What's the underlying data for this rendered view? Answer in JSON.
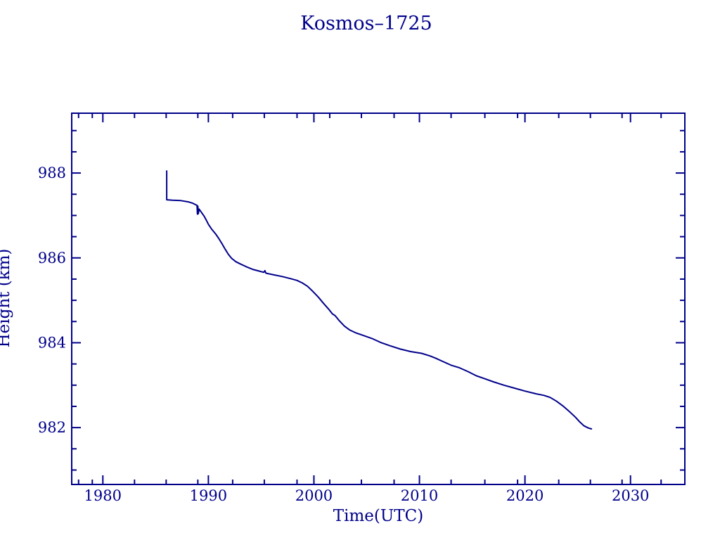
{
  "page": {
    "background": "#ffffff",
    "accent_color": "#00008b"
  },
  "chart_data": {
    "type": "line",
    "title": "Kosmos–1725",
    "xlabel": "Time(UTC)",
    "ylabel": "Height (km)",
    "xlim": [
      1977.05,
      2035.15
    ],
    "ylim": [
      980.66,
      989.41
    ],
    "grid": false,
    "legend_position": "none",
    "line_color": "#00008b",
    "x_major_ticks": [
      1980,
      1990,
      2000,
      2010,
      2020,
      2030
    ],
    "x_major_labels": [
      "1980",
      "1990",
      "2000",
      "2010",
      "2020",
      "2030"
    ],
    "x_minor_ticks": [
      1977.7,
      1979.0,
      1983.0,
      1986.0,
      1989.0,
      1992.3,
      1995.3,
      1998.4,
      2001.5,
      2004.5,
      2007.6,
      2013.0,
      2016.2,
      2019.3,
      2023.2,
      2026.2,
      2029.2,
      2032.9
    ],
    "y_major_ticks": [
      982,
      984,
      986,
      988
    ],
    "y_major_labels": [
      "982",
      "984",
      "986",
      "988"
    ],
    "y_minor_ticks": [
      981,
      981.5,
      982.5,
      983,
      983.5,
      984.5,
      985,
      985.5,
      986.5,
      987,
      987.5,
      988.5,
      989
    ],
    "series": [
      {
        "name": "Kosmos-1725 orbital height",
        "points": [
          [
            1986.05,
            988.05
          ],
          [
            1986.05,
            987.37
          ],
          [
            1986.6,
            987.36
          ],
          [
            1987.4,
            987.35
          ],
          [
            1988.1,
            987.32
          ],
          [
            1988.5,
            987.29
          ],
          [
            1988.8,
            987.25
          ],
          [
            1988.92,
            987.24
          ],
          [
            1988.96,
            987.03
          ],
          [
            1989.0,
            987.22
          ],
          [
            1989.04,
            987.04
          ],
          [
            1989.12,
            987.15
          ],
          [
            1989.35,
            987.07
          ],
          [
            1989.6,
            986.98
          ],
          [
            1989.8,
            986.89
          ],
          [
            1990.0,
            986.79
          ],
          [
            1990.3,
            986.68
          ],
          [
            1990.7,
            986.56
          ],
          [
            1991.0,
            986.45
          ],
          [
            1991.3,
            986.33
          ],
          [
            1991.6,
            986.2
          ],
          [
            1991.9,
            986.08
          ],
          [
            1992.2,
            985.99
          ],
          [
            1992.6,
            985.91
          ],
          [
            1993.0,
            985.86
          ],
          [
            1993.6,
            985.79
          ],
          [
            1994.2,
            985.73
          ],
          [
            1994.8,
            985.69
          ],
          [
            1995.25,
            985.66
          ],
          [
            1995.35,
            985.7
          ],
          [
            1995.45,
            985.64
          ],
          [
            1996.2,
            985.6
          ],
          [
            1997.0,
            985.56
          ],
          [
            1997.8,
            985.51
          ],
          [
            1998.4,
            985.47
          ],
          [
            1998.9,
            985.41
          ],
          [
            1999.4,
            985.33
          ],
          [
            1999.9,
            985.21
          ],
          [
            2000.4,
            985.08
          ],
          [
            2000.9,
            984.93
          ],
          [
            2001.4,
            984.79
          ],
          [
            2001.75,
            984.68
          ],
          [
            2002.0,
            984.64
          ],
          [
            2002.4,
            984.52
          ],
          [
            2002.9,
            984.39
          ],
          [
            2003.4,
            984.3
          ],
          [
            2004.0,
            984.23
          ],
          [
            2004.7,
            984.17
          ],
          [
            2005.5,
            984.1
          ],
          [
            2006.3,
            984.01
          ],
          [
            2007.2,
            983.93
          ],
          [
            2008.2,
            983.85
          ],
          [
            2009.2,
            983.79
          ],
          [
            2010.2,
            983.75
          ],
          [
            2011.0,
            983.69
          ],
          [
            2011.5,
            983.64
          ],
          [
            2012.2,
            983.56
          ],
          [
            2013.0,
            983.47
          ],
          [
            2013.8,
            983.41
          ],
          [
            2014.6,
            983.32
          ],
          [
            2015.4,
            983.22
          ],
          [
            2016.2,
            983.15
          ],
          [
            2017.0,
            983.08
          ],
          [
            2018.0,
            983.0
          ],
          [
            2019.0,
            982.93
          ],
          [
            2020.0,
            982.86
          ],
          [
            2021.0,
            982.8
          ],
          [
            2021.8,
            982.76
          ],
          [
            2022.4,
            982.71
          ],
          [
            2023.0,
            982.62
          ],
          [
            2023.6,
            982.51
          ],
          [
            2024.2,
            982.38
          ],
          [
            2024.8,
            982.24
          ],
          [
            2025.2,
            982.13
          ],
          [
            2025.6,
            982.04
          ],
          [
            2026.0,
            981.99
          ],
          [
            2026.3,
            981.97
          ]
        ]
      }
    ]
  }
}
